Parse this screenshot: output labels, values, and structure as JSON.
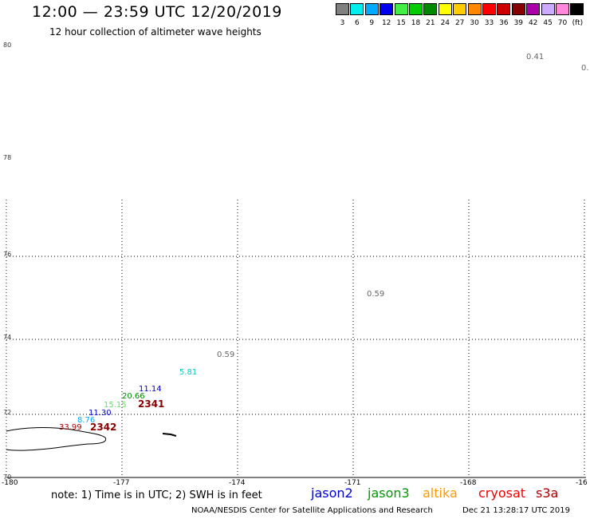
{
  "title": "12:00 — 23:59 UTC 12/20/2019",
  "subtitle": "12 hour collection of altimeter wave heights",
  "legend": {
    "unit": "(ft)",
    "bins": [
      {
        "label": "3",
        "color": "#808080"
      },
      {
        "label": "6",
        "color": "#00eeee"
      },
      {
        "label": "9",
        "color": "#00aaff"
      },
      {
        "label": "12",
        "color": "#0000ee"
      },
      {
        "label": "15",
        "color": "#44ee44"
      },
      {
        "label": "18",
        "color": "#00cc00"
      },
      {
        "label": "21",
        "color": "#008800"
      },
      {
        "label": "24",
        "color": "#ffff00"
      },
      {
        "label": "27",
        "color": "#ffcc00"
      },
      {
        "label": "30",
        "color": "#ff8800"
      },
      {
        "label": "33",
        "color": "#ff0000"
      },
      {
        "label": "36",
        "color": "#cc0000"
      },
      {
        "label": "39",
        "color": "#880000"
      },
      {
        "label": "42",
        "color": "#aa00aa"
      },
      {
        "label": "45",
        "color": "#ccaaff"
      },
      {
        "label": "70",
        "color": "#ff88dd"
      },
      {
        "label": "",
        "color": "#000000"
      }
    ]
  },
  "lat_labels": [
    "80",
    "78",
    "76",
    "74",
    "72",
    "70"
  ],
  "lon_labels": [
    "-180",
    "-177",
    "-174",
    "-171",
    "-168",
    "-16"
  ],
  "wave_labels": [
    {
      "text": "0.41",
      "color": "#666666"
    },
    {
      "text": "0.",
      "color": "#666666"
    },
    {
      "text": "0.59",
      "color": "#666666"
    },
    {
      "text": "0.59",
      "color": "#666666"
    },
    {
      "text": "5.81",
      "color": "#00cccc"
    },
    {
      "text": "11.14",
      "color": "#0000cc"
    },
    {
      "text": "20.66",
      "color": "#008800"
    },
    {
      "text": "15.15",
      "color": "#66dd66"
    },
    {
      "text": "11.30",
      "color": "#0000cc"
    },
    {
      "text": "8.76",
      "color": "#00aaff"
    },
    {
      "text": "33.99",
      "color": "#aa0000"
    }
  ],
  "pass_labels": [
    {
      "text": "2341",
      "color": "#880000"
    },
    {
      "text": "2342",
      "color": "#880000"
    }
  ],
  "note": "note:  1) Time is in UTC;  2) SWH is in feet",
  "satellites": [
    {
      "name": "jason2",
      "color": "#0000cc"
    },
    {
      "name": "jason3",
      "color": "#009900"
    },
    {
      "name": "altika",
      "color": "#ff9900"
    },
    {
      "name": "cryosat",
      "color": "#ee0000"
    },
    {
      "name": "s3a",
      "color": "#aa0000"
    }
  ],
  "footer_left": "NOAA/NESDIS Center for Satellite Applications and Research",
  "footer_right": "Dec 21 13:28:17 UTC 2019"
}
